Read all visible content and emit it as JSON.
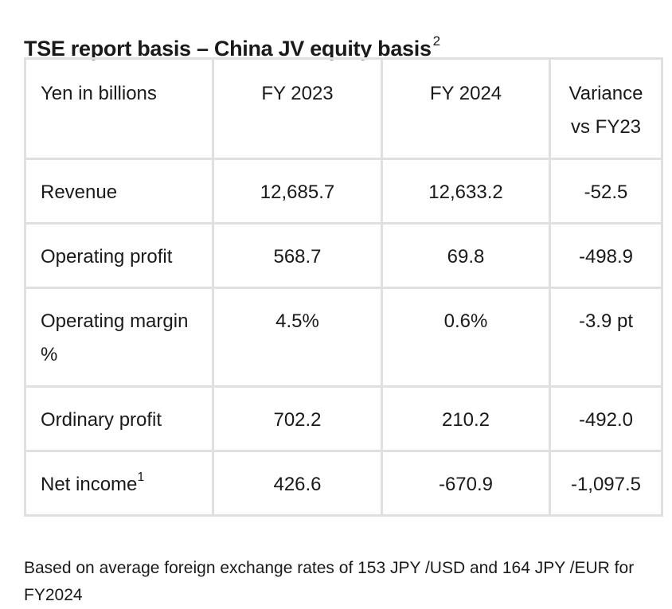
{
  "title": {
    "text": "TSE report basis – China JV equity basis",
    "superscript": "2"
  },
  "table": {
    "headers": [
      "Yen in billions",
      "FY 2023",
      "FY 2024",
      "Variance vs FY23"
    ],
    "rows": [
      {
        "label": "Revenue",
        "label_sup": "",
        "fy2023": "12,685.7",
        "fy2024": "12,633.2",
        "variance": "-52.5"
      },
      {
        "label": "Operating profit",
        "label_sup": "",
        "fy2023": "568.7",
        "fy2024": "69.8",
        "variance": "-498.9"
      },
      {
        "label": "Operating margin %",
        "label_sup": "",
        "fy2023": "4.5%",
        "fy2024": "0.6%",
        "variance": "-3.9 pt"
      },
      {
        "label": "Ordinary profit",
        "label_sup": "",
        "fy2023": "702.2",
        "fy2024": "210.2",
        "variance": "-492.0"
      },
      {
        "label": "Net income",
        "label_sup": "1",
        "fy2023": "426.6",
        "fy2024": "-670.9",
        "variance": "-1,097.5"
      }
    ]
  },
  "footnote": "Based on average foreign exchange rates of 153 JPY /USD and 164 JPY /EUR for FY2024",
  "colors": {
    "border": "#e0e0e0",
    "text": "#1a1a1a",
    "background": "#ffffff"
  }
}
